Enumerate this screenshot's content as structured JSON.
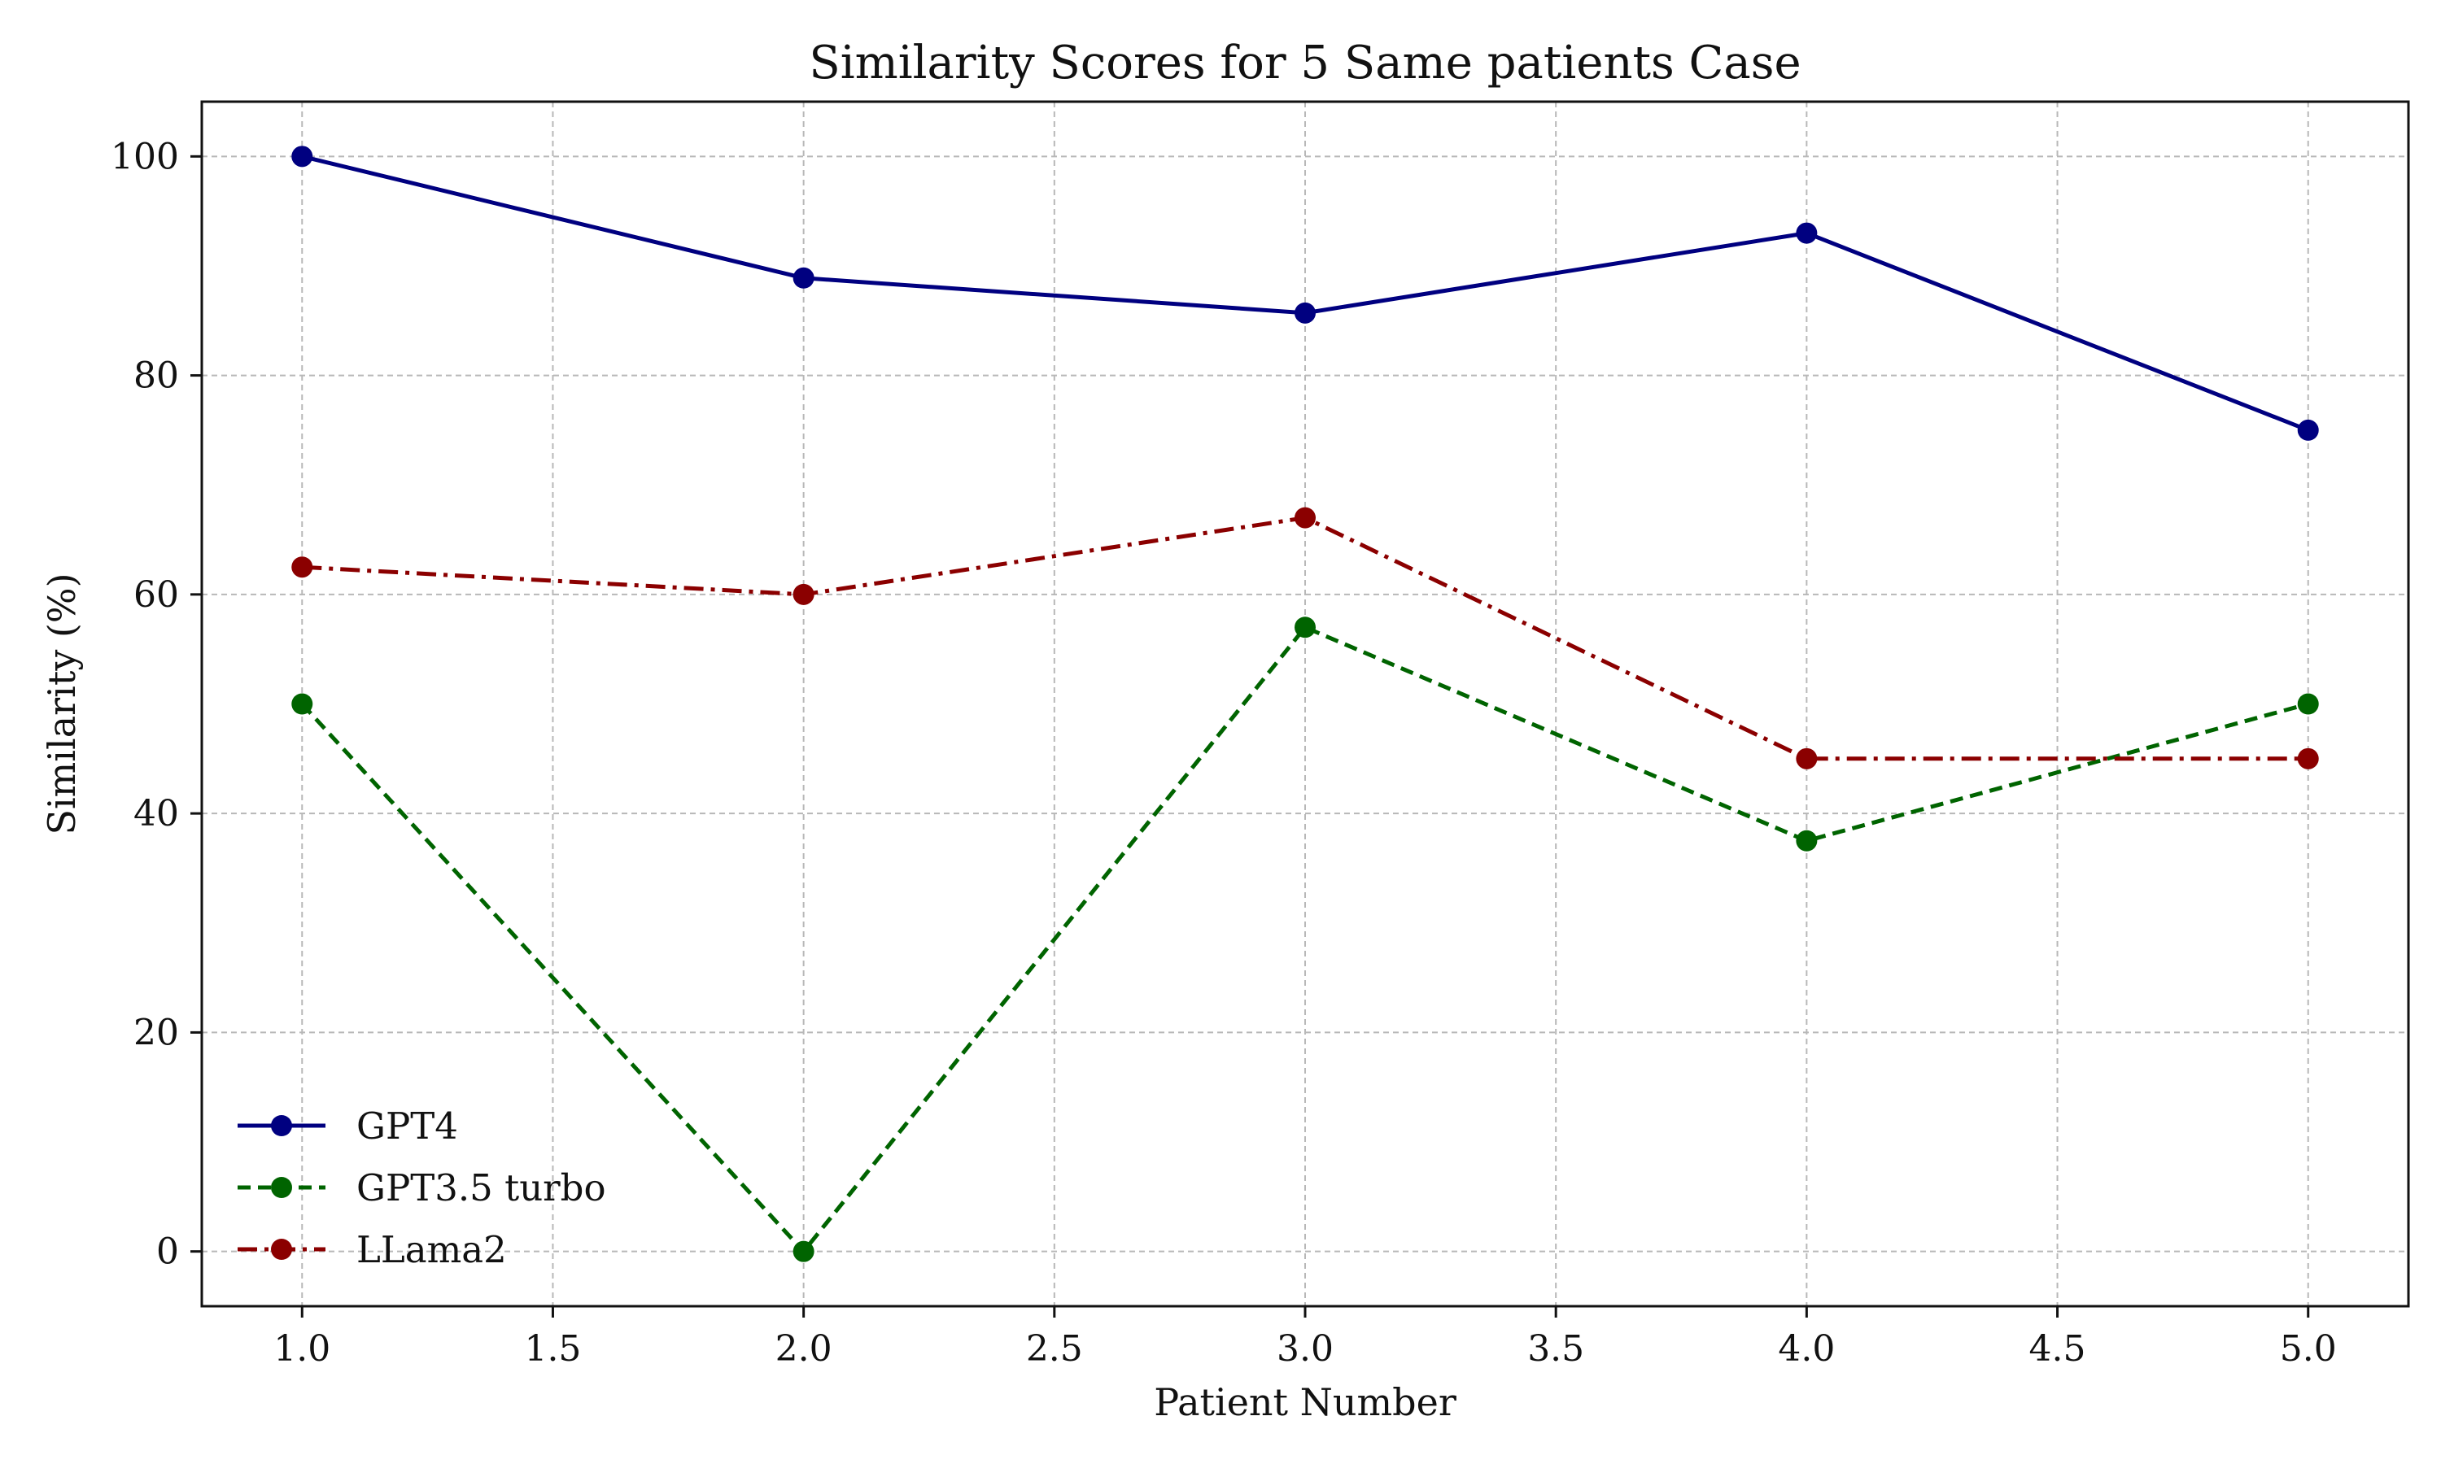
{
  "chart_data": {
    "type": "line",
    "title": "Similarity Scores for 5 Same patients Case",
    "xlabel": "Patient Number",
    "ylabel": "Similarity (%)",
    "x": [
      1,
      2,
      3,
      4,
      5
    ],
    "xlim": [
      0.8,
      5.2
    ],
    "ylim": [
      -5,
      105
    ],
    "x_ticks": [
      1.0,
      1.5,
      2.0,
      2.5,
      3.0,
      3.5,
      4.0,
      4.5,
      5.0
    ],
    "x_tick_labels": [
      "1.0",
      "1.5",
      "2.0",
      "2.5",
      "3.0",
      "3.5",
      "4.0",
      "4.5",
      "5.0"
    ],
    "y_ticks": [
      0,
      20,
      40,
      60,
      80,
      100
    ],
    "y_tick_labels": [
      "0",
      "20",
      "40",
      "60",
      "80",
      "100"
    ],
    "grid": true,
    "legend_position": "bottom-left",
    "series": [
      {
        "name": "GPT4",
        "values": [
          100,
          88.9,
          85.7,
          93,
          75
        ],
        "color": "#000080",
        "line_style": "solid",
        "marker": "circle"
      },
      {
        "name": "GPT3.5 turbo",
        "values": [
          50,
          0,
          57,
          37.5,
          50
        ],
        "color": "#006400",
        "line_style": "dashed",
        "marker": "circle"
      },
      {
        "name": "LLama2",
        "values": [
          62.5,
          60,
          67,
          45,
          45
        ],
        "color": "#8B0000",
        "line_style": "dashdot",
        "marker": "circle"
      }
    ]
  }
}
